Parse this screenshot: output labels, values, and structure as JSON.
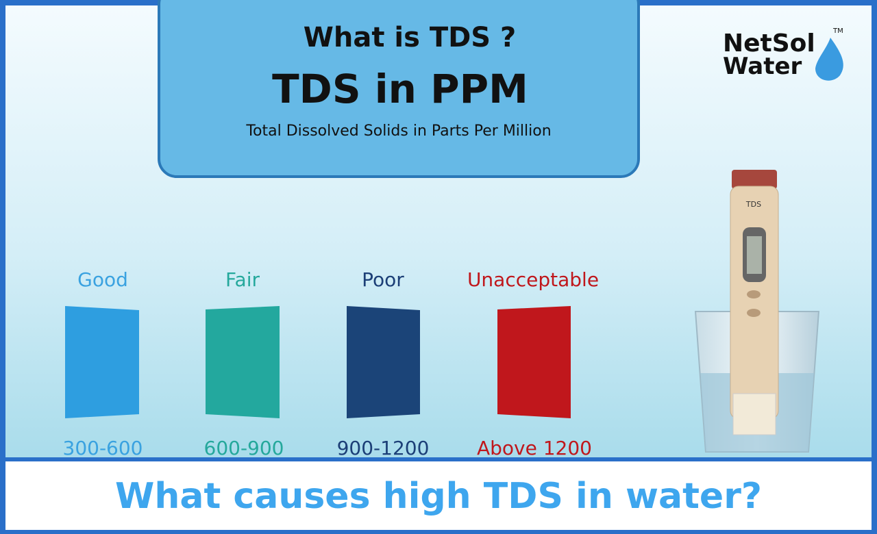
{
  "header": {
    "line1": "What is TDS ?",
    "line2": "TDS in PPM",
    "subtitle": "Total Dissolved Solids in Parts Per Million"
  },
  "logo": {
    "line1": "NetSol",
    "line2": "Water",
    "mark": "TM"
  },
  "meter": {
    "label": "TDS"
  },
  "levels": [
    {
      "label": "Good",
      "range": "300-600"
    },
    {
      "label": "Fair",
      "range": "600-900"
    },
    {
      "label": "Poor",
      "range": "900-1200"
    },
    {
      "label": "Unacceptable",
      "range": "Above 1200"
    }
  ],
  "caption": "What causes high TDS in water?"
}
